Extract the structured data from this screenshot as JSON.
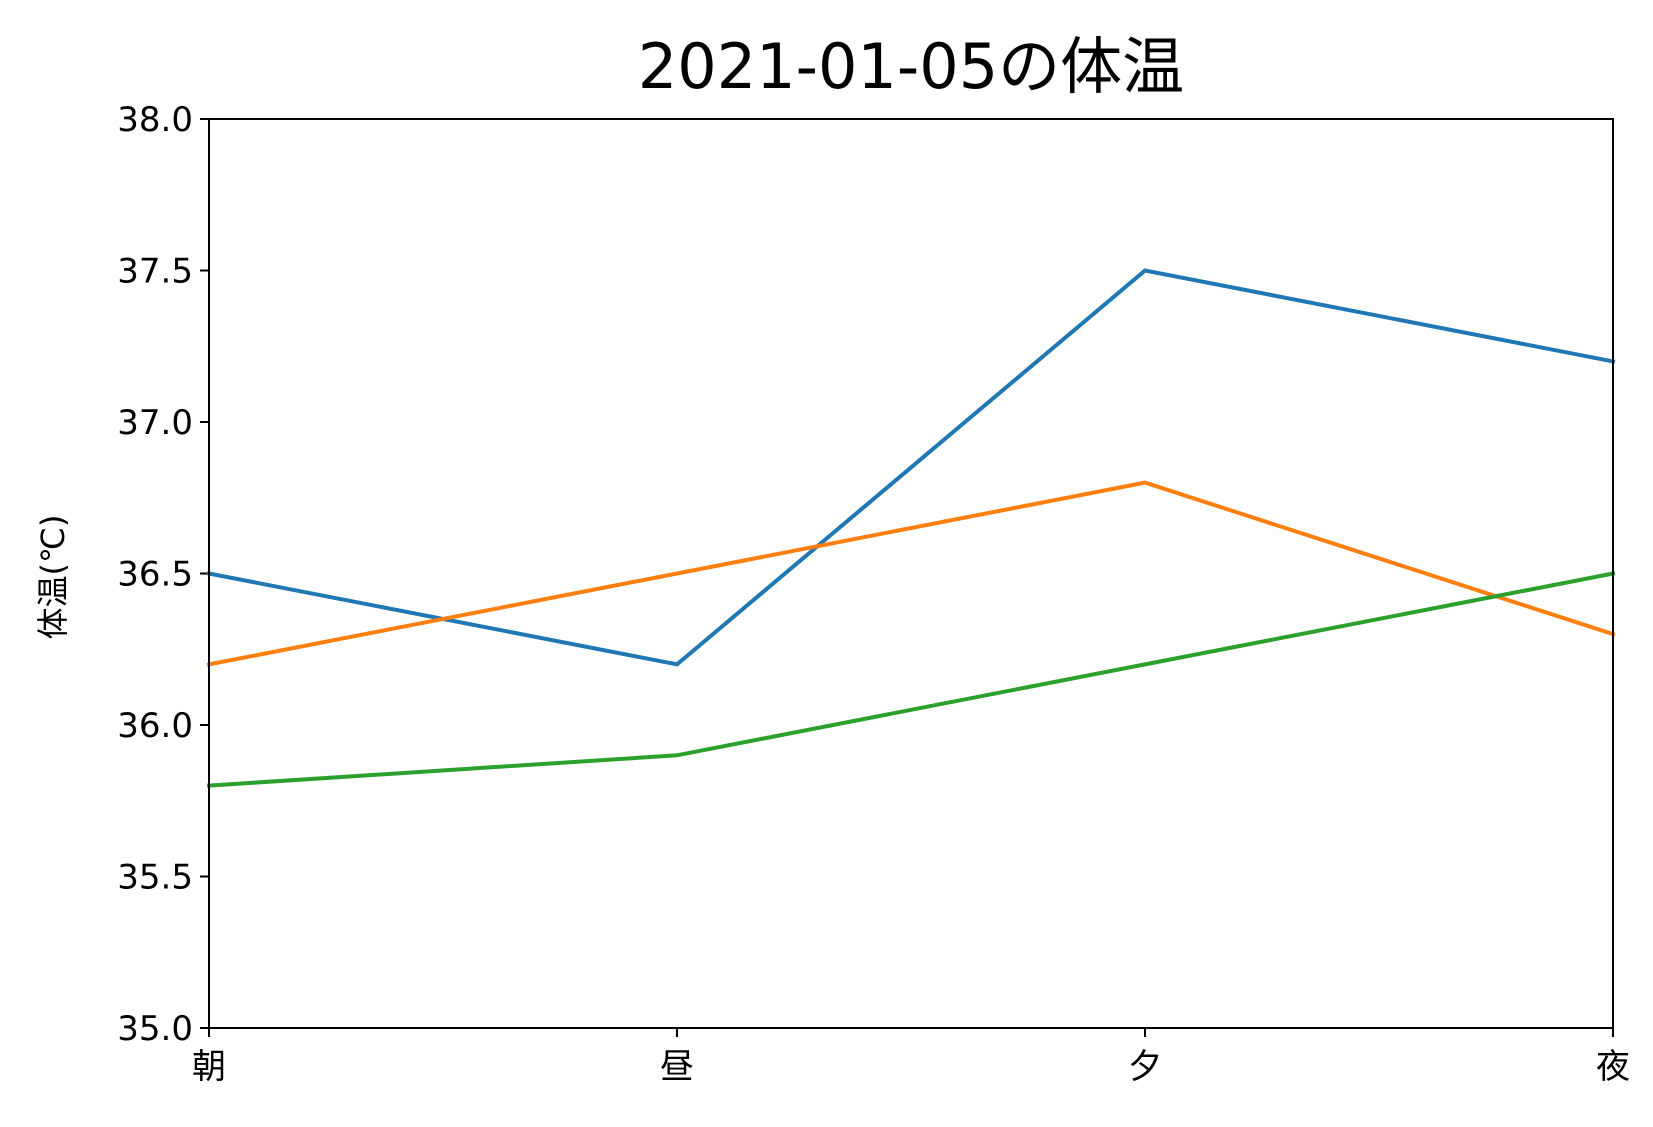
{
  "chart_data": {
    "type": "line",
    "title": "2021-01-05の体温",
    "xlabel": "",
    "ylabel": "体温(℃)",
    "categories": [
      "朝",
      "昼",
      "夕",
      "夜"
    ],
    "ylim": [
      35.0,
      38.0
    ],
    "yticks": [
      "35.0",
      "35.5",
      "36.0",
      "36.5",
      "37.0",
      "37.5",
      "38.0"
    ],
    "grid": false,
    "legend": null,
    "series": [
      {
        "color": "#1f77b4",
        "values": [
          36.5,
          36.2,
          37.5,
          37.2
        ]
      },
      {
        "color": "#ff7f0e",
        "values": [
          36.2,
          36.5,
          36.8,
          36.3
        ]
      },
      {
        "color": "#2ca02c",
        "values": [
          35.8,
          35.9,
          36.2,
          36.5
        ]
      }
    ]
  }
}
